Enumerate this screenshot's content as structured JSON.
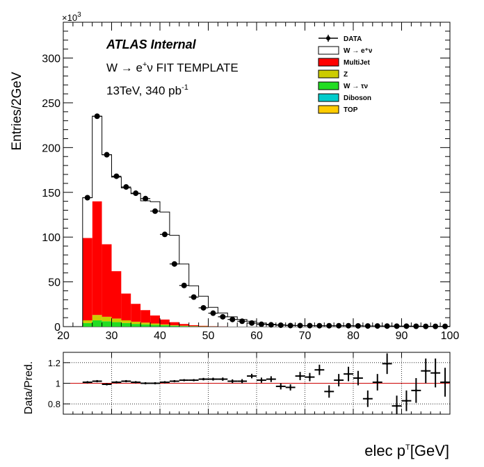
{
  "chart_data": [
    {
      "type": "histogram-stacked",
      "ylabel": "Entries/2GeV",
      "ymultiplier": "×10",
      "ymultiplier_exp": "3",
      "xlim": [
        20,
        100
      ],
      "ylim": [
        0,
        340
      ],
      "xticks": [
        "20",
        "30",
        "40",
        "50",
        "60",
        "70",
        "80",
        "90",
        "100"
      ],
      "yticks": [
        "0",
        "50",
        "100",
        "150",
        "200",
        "250",
        "300"
      ],
      "labels": {
        "atlas": "ATLAS Internal",
        "process_pre": "W → e",
        "process_sup": "+",
        "process_post": "ν FIT TEMPLATE",
        "energy": "13TeV, 340 pb",
        "energy_sup": "-1"
      },
      "legend": {
        "placement": "top-right",
        "entries": [
          {
            "label": "DATA",
            "style": "marker"
          },
          {
            "label": "W  → e⁺ν",
            "style": "box",
            "color": "#ffffff"
          },
          {
            "label": "MultiJet",
            "style": "box",
            "color": "#ff0000"
          },
          {
            "label": "Z",
            "style": "box",
            "color": "#cccc00"
          },
          {
            "label": "W  →  τν",
            "style": "box",
            "color": "#22dd22"
          },
          {
            "label": "Diboson",
            "style": "box",
            "color": "#00cccc"
          },
          {
            "label": "TOP",
            "style": "box",
            "color": "#ffcc00"
          }
        ]
      },
      "bin_edges": [
        24,
        26,
        28,
        30,
        32,
        34,
        36,
        38,
        40,
        42,
        44,
        46,
        48,
        50,
        52,
        54,
        56,
        58,
        60,
        62,
        64,
        66,
        68,
        70,
        72,
        74,
        76,
        78,
        80,
        82,
        84,
        86,
        88,
        90,
        92,
        94,
        96,
        98,
        100
      ],
      "series": [
        {
          "name": "W  →  τν",
          "color": "#22dd22",
          "values": [
            4,
            7,
            6,
            5,
            4,
            3,
            2.5,
            2,
            1.5,
            1,
            0.6,
            0.3,
            0.2,
            0.1,
            0,
            0,
            0,
            0,
            0,
            0,
            0,
            0,
            0,
            0,
            0,
            0,
            0,
            0,
            0,
            0,
            0,
            0,
            0,
            0,
            0,
            0,
            0,
            0
          ]
        },
        {
          "name": "Z",
          "color": "#cccc00",
          "values": [
            3,
            6,
            5,
            4,
            3,
            2.5,
            2,
            1.5,
            1,
            0.5,
            0.4,
            0.3,
            0.2,
            0.1,
            0,
            0,
            0,
            0,
            0,
            0,
            0,
            0,
            0,
            0,
            0,
            0,
            0,
            0,
            0,
            0,
            0,
            0,
            0,
            0,
            0,
            0,
            0,
            0
          ]
        },
        {
          "name": "MultiJet",
          "color": "#ff0000",
          "values": [
            92,
            127,
            81,
            53,
            30,
            20,
            14,
            9,
            5.5,
            3.5,
            2,
            1,
            0.6,
            0.3,
            0.2,
            0,
            0,
            0,
            0,
            0,
            0,
            0,
            0,
            0,
            0,
            0,
            0,
            0,
            0,
            0,
            0,
            0,
            0,
            0,
            0,
            0,
            0,
            0
          ]
        },
        {
          "name": "W  → e⁺ν",
          "color": "#ffffff",
          "values": [
            45,
            95,
            100,
            105,
            118,
            123,
            122,
            127,
            120,
            97,
            67,
            44,
            33,
            21,
            15,
            11,
            8,
            6,
            4,
            2.6,
            2,
            1.6,
            1.2,
            1.2,
            1.1,
            1,
            1,
            1,
            1,
            0.8,
            0.7,
            0.7,
            0.6,
            0.5,
            0.5,
            0.4,
            0.3,
            0.3
          ]
        }
      ],
      "data_points": [
        144,
        235,
        192,
        168,
        156,
        149,
        143,
        129,
        103,
        70,
        46,
        33,
        21,
        15,
        11,
        8,
        6,
        4,
        2.6,
        2,
        1.6,
        1.2,
        1.2,
        1.1,
        1,
        1,
        1,
        1,
        0.8,
        0.7,
        0.7,
        0.6,
        0.5,
        0.5,
        0.4,
        0.3,
        0.3,
        0.3
      ]
    },
    {
      "type": "ratio",
      "ylabel": "Data/Pred.",
      "xlabel_main": "elec p",
      "xlabel_sup": "T",
      "xlabel_unit": "[GeV]",
      "xlim": [
        20,
        100
      ],
      "ylim": [
        0.7,
        1.3
      ],
      "yticks": [
        "0.8",
        "1",
        "1.2"
      ],
      "reference_line": 1.0,
      "reference_color": "#cc0000",
      "x": [
        25,
        27,
        29,
        31,
        33,
        35,
        37,
        39,
        41,
        43,
        45,
        47,
        49,
        51,
        53,
        55,
        57,
        59,
        61,
        63,
        65,
        67,
        69,
        71,
        73,
        75,
        77,
        79,
        81,
        83,
        85,
        87,
        89,
        91,
        93,
        95,
        97,
        99
      ],
      "y": [
        1.01,
        1.02,
        0.99,
        1.01,
        1.02,
        1.01,
        1.0,
        1.0,
        1.01,
        1.02,
        1.03,
        1.03,
        1.04,
        1.04,
        1.04,
        1.02,
        1.02,
        1.07,
        1.03,
        1.04,
        0.97,
        0.96,
        1.07,
        1.06,
        1.13,
        0.92,
        1.03,
        1.09,
        1.05,
        0.85,
        1.01,
        1.19,
        0.78,
        0.83,
        0.93,
        1.12,
        1.1,
        1.01
      ],
      "err": [
        0.005,
        0.005,
        0.005,
        0.005,
        0.005,
        0.005,
        0.005,
        0.005,
        0.006,
        0.007,
        0.008,
        0.01,
        0.012,
        0.014,
        0.016,
        0.018,
        0.02,
        0.022,
        0.025,
        0.028,
        0.03,
        0.03,
        0.04,
        0.04,
        0.05,
        0.06,
        0.06,
        0.07,
        0.07,
        0.08,
        0.08,
        0.1,
        0.1,
        0.1,
        0.12,
        0.12,
        0.14,
        0.14
      ]
    }
  ]
}
